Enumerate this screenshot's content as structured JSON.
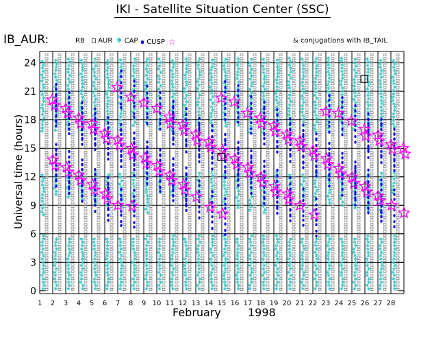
{
  "header": {
    "title": "IKI - Satellite Situation Center (SSC)",
    "station": "IB_AUR:",
    "conjugations": "& conjugations with IB_TAIL"
  },
  "legend": {
    "rb": "RB",
    "aur": "AUR",
    "cap": "CAP",
    "cusp": "CUSP"
  },
  "colors": {
    "rb": "#666666",
    "aur": "#808080",
    "cap": "#33cccc",
    "cusp": "#0000ee",
    "conjugation": "#ff00ff",
    "grid": "#000000"
  },
  "chart_data": {
    "type": "scatter",
    "title": "IKI - Satellite Situation Center (SSC)",
    "xlabel_month": "February",
    "xlabel_year": "1998",
    "ylabel": "Universal time (hours)",
    "x_ticks": [
      1,
      2,
      3,
      4,
      5,
      6,
      7,
      8,
      9,
      10,
      11,
      12,
      13,
      14,
      15,
      16,
      17,
      18,
      19,
      20,
      21,
      22,
      23,
      24,
      25,
      26,
      27,
      28
    ],
    "y_ticks": [
      0,
      3,
      6,
      9,
      12,
      15,
      18,
      21,
      24
    ],
    "xlim": [
      1,
      29
    ],
    "ylim": [
      -0.3,
      25.2
    ],
    "conjugations": [
      {
        "day": 1.85,
        "t": 20.1
      },
      {
        "day": 2.05,
        "t": 19.5
      },
      {
        "day": 1.9,
        "t": 13.8
      },
      {
        "day": 2.1,
        "t": 13.2
      },
      {
        "day": 2.9,
        "t": 19.2
      },
      {
        "day": 3.05,
        "t": 18.7
      },
      {
        "day": 2.95,
        "t": 13.0
      },
      {
        "day": 3.1,
        "t": 12.5
      },
      {
        "day": 3.9,
        "t": 18.2
      },
      {
        "day": 4.05,
        "t": 17.6
      },
      {
        "day": 3.9,
        "t": 12.2
      },
      {
        "day": 4.05,
        "t": 11.6
      },
      {
        "day": 4.9,
        "t": 17.6
      },
      {
        "day": 5.05,
        "t": 17.0
      },
      {
        "day": 4.95,
        "t": 11.2
      },
      {
        "day": 5.1,
        "t": 10.6
      },
      {
        "day": 5.9,
        "t": 16.6
      },
      {
        "day": 6.05,
        "t": 16.0
      },
      {
        "day": 5.95,
        "t": 10.2
      },
      {
        "day": 6.1,
        "t": 9.7
      },
      {
        "day": 6.85,
        "t": 21.4
      },
      {
        "day": 6.9,
        "t": 15.9
      },
      {
        "day": 7.05,
        "t": 15.3
      },
      {
        "day": 6.9,
        "t": 9.0
      },
      {
        "day": 7.9,
        "t": 20.4
      },
      {
        "day": 7.95,
        "t": 15.0
      },
      {
        "day": 8.05,
        "t": 14.3
      },
      {
        "day": 8.0,
        "t": 8.9
      },
      {
        "day": 8.9,
        "t": 19.8
      },
      {
        "day": 9.0,
        "t": 14.0
      },
      {
        "day": 9.1,
        "t": 13.4
      },
      {
        "day": 9.9,
        "t": 19.2
      },
      {
        "day": 9.95,
        "t": 13.2
      },
      {
        "day": 10.1,
        "t": 12.6
      },
      {
        "day": 10.85,
        "t": 18.3
      },
      {
        "day": 10.95,
        "t": 17.6
      },
      {
        "day": 10.9,
        "t": 12.2
      },
      {
        "day": 11.05,
        "t": 11.6
      },
      {
        "day": 11.9,
        "t": 17.5
      },
      {
        "day": 12.0,
        "t": 16.9
      },
      {
        "day": 11.95,
        "t": 11.2
      },
      {
        "day": 12.05,
        "t": 10.6
      },
      {
        "day": 12.9,
        "t": 16.5
      },
      {
        "day": 13.0,
        "t": 15.8
      },
      {
        "day": 12.95,
        "t": 9.9
      },
      {
        "day": 13.9,
        "t": 15.7
      },
      {
        "day": 14.05,
        "t": 15.1
      },
      {
        "day": 14.0,
        "t": 8.8
      },
      {
        "day": 14.85,
        "t": 20.3
      },
      {
        "day": 14.95,
        "t": 14.8
      },
      {
        "day": 15.05,
        "t": 14.2
      },
      {
        "day": 14.95,
        "t": 8.1
      },
      {
        "day": 15.85,
        "t": 19.9
      },
      {
        "day": 15.9,
        "t": 13.9
      },
      {
        "day": 16.05,
        "t": 13.3
      },
      {
        "day": 16.85,
        "t": 18.7
      },
      {
        "day": 16.9,
        "t": 13.0
      },
      {
        "day": 17.05,
        "t": 12.4
      },
      {
        "day": 17.85,
        "t": 18.2
      },
      {
        "day": 17.95,
        "t": 17.6
      },
      {
        "day": 17.9,
        "t": 12.0
      },
      {
        "day": 18.05,
        "t": 11.4
      },
      {
        "day": 18.9,
        "t": 17.4
      },
      {
        "day": 19.0,
        "t": 16.8
      },
      {
        "day": 18.95,
        "t": 11.0
      },
      {
        "day": 19.05,
        "t": 10.4
      },
      {
        "day": 19.9,
        "t": 16.5
      },
      {
        "day": 20.0,
        "t": 15.9
      },
      {
        "day": 19.95,
        "t": 10.2
      },
      {
        "day": 20.05,
        "t": 9.6
      },
      {
        "day": 20.9,
        "t": 15.8
      },
      {
        "day": 21.0,
        "t": 15.2
      },
      {
        "day": 20.9,
        "t": 9.0
      },
      {
        "day": 21.9,
        "t": 14.8
      },
      {
        "day": 22.0,
        "t": 14.2
      },
      {
        "day": 22.0,
        "t": 8.0
      },
      {
        "day": 22.9,
        "t": 18.9
      },
      {
        "day": 22.95,
        "t": 13.9
      },
      {
        "day": 23.05,
        "t": 13.3
      },
      {
        "day": 23.85,
        "t": 18.7
      },
      {
        "day": 23.9,
        "t": 12.9
      },
      {
        "day": 24.05,
        "t": 12.3
      },
      {
        "day": 24.85,
        "t": 17.9
      },
      {
        "day": 24.9,
        "t": 12.0
      },
      {
        "day": 25.05,
        "t": 11.3
      },
      {
        "day": 25.85,
        "t": 17.0
      },
      {
        "day": 25.95,
        "t": 16.3
      },
      {
        "day": 25.9,
        "t": 11.0
      },
      {
        "day": 26.05,
        "t": 10.4
      },
      {
        "day": 26.9,
        "t": 16.4
      },
      {
        "day": 27.0,
        "t": 15.8
      },
      {
        "day": 26.9,
        "t": 10.0
      },
      {
        "day": 27.05,
        "t": 9.5
      },
      {
        "day": 27.9,
        "t": 15.4
      },
      {
        "day": 28.0,
        "t": 14.9
      },
      {
        "day": 27.95,
        "t": 9.0
      },
      {
        "day": 28.85,
        "t": 15.0
      },
      {
        "day": 29.0,
        "t": 14.4
      },
      {
        "day": 28.9,
        "t": 8.2
      }
    ],
    "highlight_boxes": [
      {
        "day": 14.85,
        "t": 14.1
      },
      {
        "day": 25.85,
        "t": 22.3
      }
    ]
  }
}
